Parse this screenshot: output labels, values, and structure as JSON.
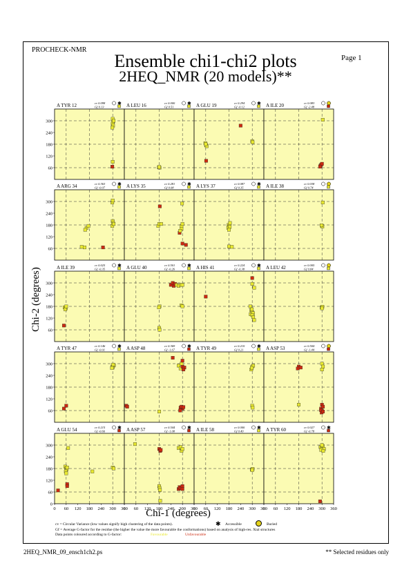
{
  "header": {
    "program": "PROCHECK-NMR",
    "title": "Ensemble chi1-chi2 plots",
    "subtitle": "2HEQ_NMR (20 models)**",
    "page_label": "Page  1"
  },
  "footer": {
    "filename": "2HEQ_NMR_09_ensch1ch2.ps",
    "note": "** Selected residues only"
  },
  "legend": {
    "cv_def": "cv = Circular Variance (low values signify high clustering of the data points).",
    "accessible": "Accessible",
    "buried": "Buried",
    "gf_def": "Gf = Average G-factor for the residue (the higher the value the more favourable the conformations)  based on analysis of high-res. Xtal structures",
    "coloring": "Data points coloured according to G-factor:",
    "favourable": "Favourable",
    "unfavourable": "Unfavourable"
  },
  "colors": {
    "panel_bg": "#fbfbb3",
    "favourable": "#e8e830",
    "unfavourable": "#cc2a10",
    "grid": "#333333",
    "buried": "#e4d21c"
  },
  "chart_data": {
    "type": "scatter",
    "xlabel": "Chi-1 (degrees)",
    "ylabel": "Chi-2 (degrees)",
    "xlim": [
      0,
      360
    ],
    "ylim": [
      0,
      360
    ],
    "xticks": [
      0,
      60,
      120,
      180,
      240,
      300,
      360
    ],
    "yticks": [
      0,
      60,
      120,
      180,
      240,
      300
    ],
    "grid": "dashed at 60, 180, 300",
    "panels": [
      {
        "residue": "A TYR 12",
        "cv": "cv 0.098",
        "gf": "Gf  0.13",
        "access": "accessible",
        "points": [
          [
            300,
            310
          ],
          [
            302,
            295
          ],
          [
            300,
            285
          ],
          [
            302,
            275
          ],
          [
            298,
            265
          ],
          [
            305,
            300
          ],
          [
            300,
            90
          ],
          [
            298,
            65
          ]
        ],
        "colors": [
          "fav",
          "fav",
          "fav",
          "fav",
          "fav",
          "fav",
          "fav",
          "unf"
        ]
      },
      {
        "residue": "A LEU 16",
        "cv": "cv 0.000",
        "gf": "Gf  0.51",
        "access": "accessible",
        "points": [
          [
            178,
            62
          ],
          [
            182,
            60
          ],
          [
            180,
            64
          ]
        ],
        "colors": [
          "fav",
          "fav",
          "fav"
        ]
      },
      {
        "residue": "A GLU 19",
        "cv": "cv 0.294",
        "gf": "Gf -0.12",
        "access": "accessible",
        "points": [
          [
            58,
            185
          ],
          [
            62,
            175
          ],
          [
            65,
            170
          ],
          [
            60,
            180
          ],
          [
            300,
            195
          ],
          [
            302,
            190
          ],
          [
            240,
            275
          ],
          [
            62,
            95
          ]
        ],
        "colors": [
          "fav",
          "fav",
          "fav",
          "fav",
          "fav",
          "fav",
          "unf",
          "unf"
        ]
      },
      {
        "residue": "A ILE 20",
        "cv": "cv 0.083",
        "gf": "Gf -2.48",
        "access": "buried",
        "points": [
          [
            292,
            70
          ],
          [
            296,
            75
          ],
          [
            300,
            80
          ],
          [
            290,
            65
          ],
          [
            304,
            305
          ]
        ],
        "colors": [
          "unf",
          "unf",
          "unf",
          "unf",
          "fav"
        ]
      },
      {
        "residue": "A ARG 34",
        "cv": "cv 0.363",
        "gf": "Gf -0.07",
        "access": "accessible",
        "points": [
          [
            298,
            295
          ],
          [
            300,
            305
          ],
          [
            300,
            200
          ],
          [
            302,
            190
          ],
          [
            298,
            175
          ],
          [
            305,
            185
          ],
          [
            165,
            165
          ],
          [
            175,
            175
          ],
          [
            158,
            155
          ],
          [
            155,
            65
          ],
          [
            140,
            68
          ],
          [
            250,
            65
          ]
        ],
        "colors": [
          "fav",
          "fav",
          "fav",
          "fav",
          "fav",
          "fav",
          "fav",
          "fav",
          "fav",
          "fav",
          "fav",
          "unf"
        ]
      },
      {
        "residue": "A LYS 35",
        "cv": "cv 0.281",
        "gf": "Gf  0.08",
        "access": "accessible",
        "points": [
          [
            298,
            290
          ],
          [
            175,
            175
          ],
          [
            180,
            185
          ],
          [
            295,
            175
          ],
          [
            300,
            185
          ],
          [
            295,
            160
          ],
          [
            285,
            140
          ],
          [
            288,
            150
          ],
          [
            300,
            85
          ],
          [
            318,
            78
          ],
          [
            183,
            275
          ],
          [
            190,
            185
          ]
        ],
        "colors": [
          "fav",
          "fav",
          "fav",
          "fav",
          "fav",
          "fav",
          "unf",
          "fav",
          "unf",
          "unf",
          "unf",
          "fav"
        ]
      },
      {
        "residue": "A LYS 37",
        "cv": "cv 0.087",
        "gf": "Gf  0.35",
        "access": "accessible",
        "points": [
          [
            178,
            180
          ],
          [
            182,
            175
          ],
          [
            176,
            165
          ],
          [
            184,
            170
          ],
          [
            180,
            155
          ],
          [
            185,
            190
          ],
          [
            180,
            70
          ],
          [
            195,
            68
          ]
        ],
        "colors": [
          "fav",
          "fav",
          "fav",
          "fav",
          "fav",
          "fav",
          "fav",
          "fav"
        ]
      },
      {
        "residue": "A ILE 38",
        "cv": "cv 0.038",
        "gf": "Gf  0.74",
        "access": "buried",
        "points": [
          [
            300,
            175
          ],
          [
            302,
            172
          ],
          [
            298,
            178
          ],
          [
            304,
            295
          ]
        ],
        "colors": [
          "fav",
          "fav",
          "fav",
          "fav"
        ]
      },
      {
        "residue": "A ILE 39",
        "cv": "cv 0.025",
        "gf": "Gf -0.35",
        "access": "accessible",
        "points": [
          [
            52,
            175
          ],
          [
            58,
            170
          ],
          [
            55,
            165
          ],
          [
            60,
            180
          ],
          [
            48,
            82
          ]
        ],
        "colors": [
          "fav",
          "fav",
          "fav",
          "fav",
          "unf"
        ]
      },
      {
        "residue": "A GLU 40",
        "cv": "cv 0.501",
        "gf": "Gf -0.26",
        "access": "accessible",
        "points": [
          [
            240,
            290
          ],
          [
            250,
            300
          ],
          [
            255,
            285
          ],
          [
            262,
            295
          ],
          [
            270,
            290
          ],
          [
            280,
            285
          ],
          [
            292,
            290
          ],
          [
            300,
            290
          ],
          [
            182,
            180
          ],
          [
            178,
            175
          ],
          [
            180,
            70
          ],
          [
            182,
            60
          ],
          [
            295,
            185
          ],
          [
            300,
            180
          ]
        ],
        "colors": [
          "unf",
          "unf",
          "unf",
          "unf",
          "fav",
          "fav",
          "fav",
          "fav",
          "fav",
          "fav",
          "fav",
          "fav",
          "fav",
          "fav"
        ]
      },
      {
        "residue": "A HIS 41",
        "cv": "cv 0.224",
        "gf": "Gf -0.38",
        "access": "accessible",
        "points": [
          [
            290,
            180
          ],
          [
            295,
            160
          ],
          [
            300,
            150
          ],
          [
            292,
            140
          ],
          [
            304,
            145
          ],
          [
            300,
            135
          ],
          [
            298,
            165
          ],
          [
            305,
            125
          ],
          [
            310,
            110
          ],
          [
            300,
            295
          ],
          [
            310,
            275
          ],
          [
            300,
            325
          ],
          [
            60,
            230
          ]
        ],
        "colors": [
          "fav",
          "fav",
          "fav",
          "fav",
          "fav",
          "fav",
          "fav",
          "fav",
          "fav",
          "fav",
          "fav",
          "unf",
          "unf"
        ]
      },
      {
        "residue": "A LEU 42",
        "cv": "cv 0.005",
        "gf": "Gf  0.84",
        "access": "buried",
        "points": [
          [
            298,
            175
          ],
          [
            302,
            178
          ],
          [
            300,
            170
          ]
        ],
        "colors": [
          "fav",
          "fav",
          "fav"
        ]
      },
      {
        "residue": "A TYR 47",
        "cv": "cv 0.146",
        "gf": "Gf -0.01",
        "access": "accessible",
        "points": [
          [
            298,
            285
          ],
          [
            304,
            290
          ],
          [
            300,
            280
          ],
          [
            306,
            292
          ],
          [
            296,
            278
          ],
          [
            302,
            295
          ],
          [
            60,
            85
          ],
          [
            48,
            70
          ]
        ],
        "colors": [
          "fav",
          "fav",
          "fav",
          "fav",
          "fav",
          "fav",
          "unf",
          "unf"
        ]
      },
      {
        "residue": "A ASP 48",
        "cv": "cv 0.369",
        "gf": "Gf -1.67",
        "access": "accessible",
        "points": [
          [
            280,
            290
          ],
          [
            290,
            275
          ],
          [
            300,
            285
          ],
          [
            310,
            280
          ],
          [
            295,
            300
          ],
          [
            300,
            315
          ],
          [
            305,
            270
          ],
          [
            250,
            330
          ],
          [
            300,
            70
          ],
          [
            290,
            75
          ],
          [
            295,
            80
          ],
          [
            305,
            78
          ],
          [
            288,
            60
          ],
          [
            180,
            55
          ],
          [
            10,
            85
          ],
          [
            15,
            80
          ]
        ],
        "colors": [
          "fav",
          "fav",
          "unf",
          "unf",
          "fav",
          "unf",
          "unf",
          "unf",
          "unf",
          "unf",
          "unf",
          "unf",
          "unf",
          "fav",
          "unf",
          "unf"
        ]
      },
      {
        "residue": "A TYR 49",
        "cv": "cv 0.210",
        "gf": "Gf  0.21",
        "access": "accessible",
        "points": [
          [
            295,
            270
          ],
          [
            300,
            285
          ],
          [
            305,
            290
          ],
          [
            298,
            278
          ],
          [
            300,
            85
          ],
          [
            302,
            75
          ]
        ],
        "colors": [
          "fav",
          "fav",
          "fav",
          "fav",
          "fav",
          "fav"
        ]
      },
      {
        "residue": "A ASP 53",
        "cv": "cv 0.504",
        "gf": "Gf -1.44",
        "access": "buried",
        "points": [
          [
            300,
            300
          ],
          [
            305,
            285
          ],
          [
            300,
            270
          ],
          [
            180,
            285
          ],
          [
            175,
            275
          ],
          [
            190,
            280
          ],
          [
            300,
            90
          ],
          [
            295,
            70
          ],
          [
            300,
            60
          ],
          [
            305,
            80
          ],
          [
            180,
            90
          ],
          [
            298,
            50
          ],
          [
            295,
            62
          ],
          [
            305,
            55
          ]
        ],
        "colors": [
          "fav",
          "fav",
          "fav",
          "unf",
          "unf",
          "unf",
          "unf",
          "unf",
          "unf",
          "unf",
          "fav",
          "unf",
          "unf",
          "unf"
        ]
      },
      {
        "residue": "A GLU 54",
        "cv": "cv 0.215",
        "gf": "Gf -0.66",
        "access": "accessible",
        "points": [
          [
            55,
            190
          ],
          [
            60,
            180
          ],
          [
            62,
            175
          ],
          [
            58,
            165
          ],
          [
            65,
            185
          ],
          [
            60,
            155
          ],
          [
            70,
            285
          ],
          [
            65,
            100
          ],
          [
            65,
            90
          ],
          [
            195,
            165
          ],
          [
            300,
            185
          ],
          [
            305,
            180
          ],
          [
            18,
            68
          ]
        ],
        "colors": [
          "fav",
          "fav",
          "fav",
          "fav",
          "fav",
          "fav",
          "fav",
          "unf",
          "unf",
          "fav",
          "fav",
          "fav",
          "unf"
        ]
      },
      {
        "residue": "A ASP 57",
        "cv": "cv 0.544",
        "gf": "Gf -1.08",
        "access": "accessible",
        "points": [
          [
            180,
            280
          ],
          [
            185,
            270
          ],
          [
            188,
            275
          ],
          [
            280,
            285
          ],
          [
            290,
            290
          ],
          [
            295,
            270
          ],
          [
            300,
            280
          ],
          [
            280,
            75
          ],
          [
            285,
            85
          ],
          [
            290,
            80
          ],
          [
            180,
            90
          ],
          [
            182,
            80
          ],
          [
            184,
            70
          ],
          [
            55,
            305
          ],
          [
            185,
            15
          ],
          [
            300,
            75
          ],
          [
            300,
            90
          ]
        ],
        "colors": [
          "unf",
          "unf",
          "unf",
          "fav",
          "fav",
          "fav",
          "fav",
          "unf",
          "unf",
          "unf",
          "fav",
          "fav",
          "fav",
          "fav",
          "fav",
          "unf",
          "unf"
        ]
      },
      {
        "residue": "A ILE 58",
        "cv": "cv 0.000",
        "gf": "Gf  0.49",
        "access": "accessible",
        "points": [
          [
            298,
            175
          ],
          [
            302,
            178
          ],
          [
            300,
            172
          ]
        ],
        "colors": [
          "fav",
          "fav",
          "fav"
        ]
      },
      {
        "residue": "A TYR 60",
        "cv": "cv 0.027",
        "gf": "Gf -0.78",
        "access": "accessible",
        "points": [
          [
            292,
            290
          ],
          [
            298,
            285
          ],
          [
            304,
            295
          ],
          [
            310,
            280
          ],
          [
            296,
            275
          ],
          [
            300,
            300
          ],
          [
            306,
            270
          ],
          [
            290,
            12
          ]
        ],
        "colors": [
          "fav",
          "fav",
          "fav",
          "fav",
          "fav",
          "fav",
          "fav",
          "unf"
        ]
      }
    ]
  }
}
